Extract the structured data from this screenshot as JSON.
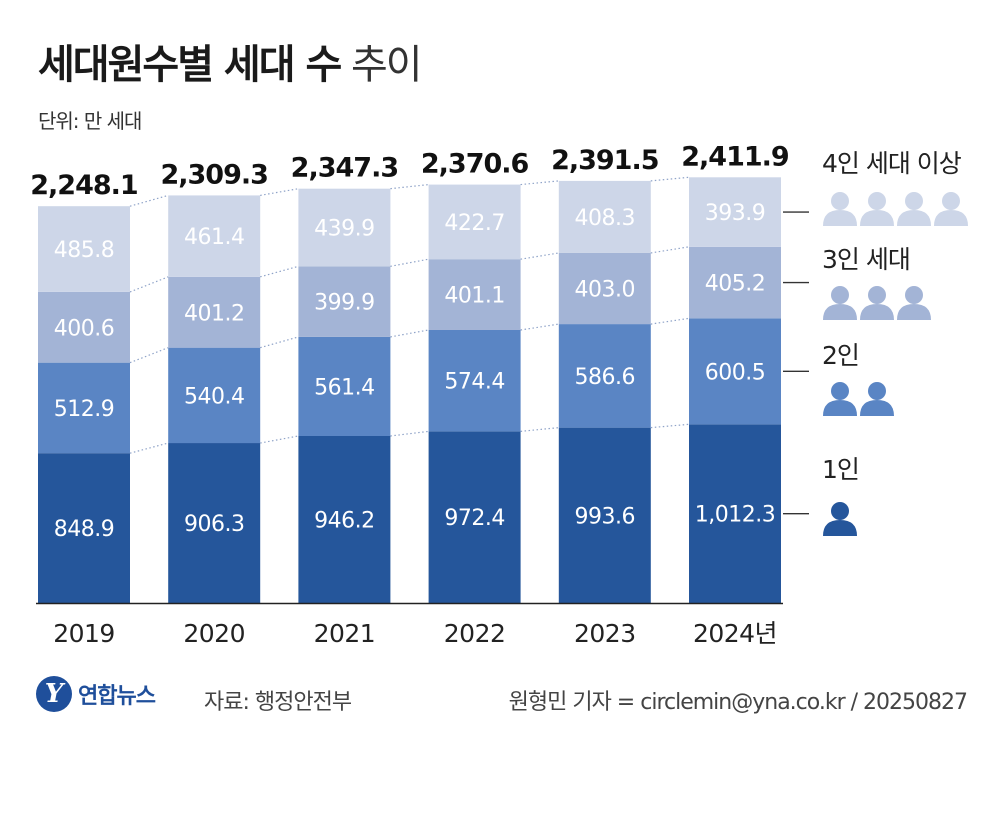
{
  "title_main": "세대원수별 세대 수",
  "title_sub": "추이",
  "unit": "단위: 만 세대",
  "source": "자료: 행정안전부",
  "credit": "원형민 기자 = circlemin@yna.co.kr / 20250827",
  "logo": {
    "text": "연합뉴스"
  },
  "colors": {
    "one": "#25569b",
    "two": "#5a85c4",
    "three": "#a3b4d6",
    "four": "#cdd6e8",
    "axis": "#222222",
    "dotted": "#8fa3c8"
  },
  "chart_data": {
    "type": "bar",
    "stacked": true,
    "categories": [
      "2019",
      "2020",
      "2021",
      "2022",
      "2023",
      "2024년"
    ],
    "totals": [
      "2,248.1",
      "2,309.3",
      "2,347.3",
      "2,370.6",
      "2,391.5",
      "2,411.9"
    ],
    "series": [
      {
        "name": "1인",
        "key": "one",
        "values": [
          848.9,
          906.3,
          946.2,
          972.4,
          993.6,
          1012.3
        ],
        "labels": [
          "848.9",
          "906.3",
          "946.2",
          "972.4",
          "993.6",
          "1,012.3"
        ]
      },
      {
        "name": "2인",
        "key": "two",
        "values": [
          512.9,
          540.4,
          561.4,
          574.4,
          586.6,
          600.5
        ],
        "labels": [
          "512.9",
          "540.4",
          "561.4",
          "574.4",
          "586.6",
          "600.5"
        ]
      },
      {
        "name": "3인 세대",
        "key": "three",
        "values": [
          400.6,
          401.2,
          399.9,
          401.1,
          403.0,
          405.2
        ],
        "labels": [
          "400.6",
          "401.2",
          "399.9",
          "401.1",
          "403.0",
          "405.2"
        ]
      },
      {
        "name": "4인 세대 이상",
        "key": "four",
        "values": [
          485.8,
          461.4,
          439.9,
          422.7,
          408.3,
          393.9
        ],
        "labels": [
          "485.8",
          "461.4",
          "439.9",
          "422.7",
          "408.3",
          "393.9"
        ]
      }
    ],
    "legend_icons": {
      "one": 1,
      "two": 2,
      "three": 3,
      "four": 4
    }
  }
}
